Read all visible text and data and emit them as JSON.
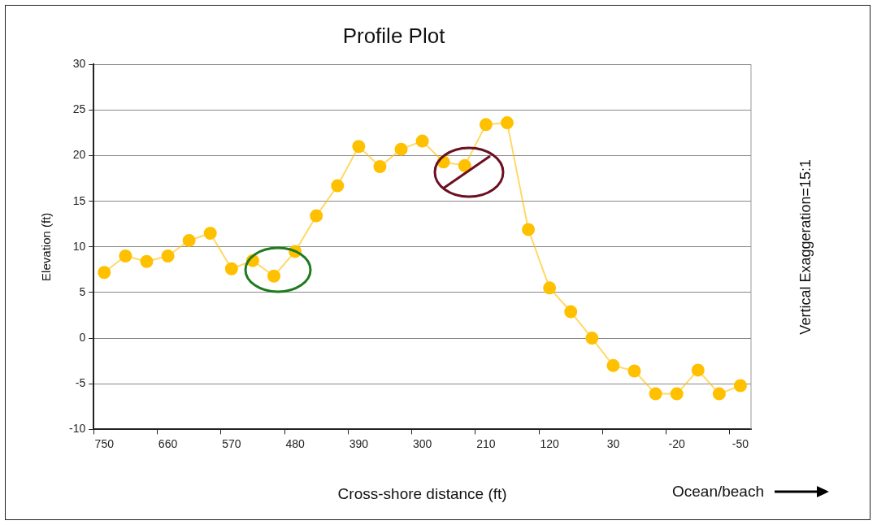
{
  "chart_data": {
    "type": "line",
    "title": "Profile Plot",
    "xlabel": "Cross-shore distance (ft)",
    "ylabel": "Elevation (ft)",
    "categories": [
      "750",
      null,
      null,
      "660",
      null,
      null,
      "570",
      null,
      null,
      "480",
      null,
      null,
      "390",
      null,
      null,
      "300",
      null,
      null,
      "210",
      null,
      null,
      "120",
      null,
      null,
      "30",
      null,
      null,
      "-20",
      null,
      null,
      "-50"
    ],
    "series": [
      {
        "color": "#ffc000",
        "values": [
          7.2,
          9.0,
          8.4,
          9.0,
          10.7,
          11.5,
          7.6,
          8.5,
          6.8,
          9.5,
          13.4,
          16.7,
          21.0,
          18.8,
          20.7,
          21.6,
          19.3,
          18.9,
          23.4,
          23.6,
          11.9,
          5.5,
          2.9,
          0.0,
          -3.0,
          -3.6,
          -6.1,
          -6.1,
          -3.5,
          -6.1,
          -5.2
        ]
      }
    ],
    "ylim": [
      -10,
      30
    ],
    "yticks": [
      -10,
      -5,
      0,
      5,
      10,
      15,
      20,
      25,
      30
    ],
    "grid": "y",
    "legend": false,
    "marker": "circle",
    "line_style": "solid",
    "annotations": [
      "Vertical Exaggeration=15:1",
      "Ocean/beach"
    ]
  }
}
